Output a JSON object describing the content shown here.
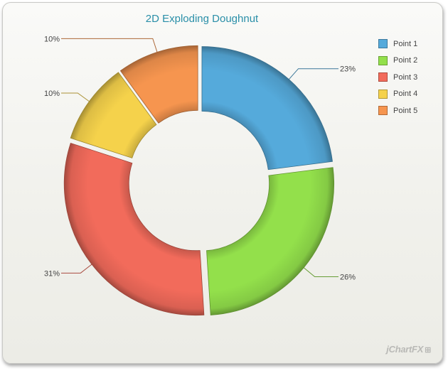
{
  "chart_data": {
    "type": "pie",
    "subtype": "exploding-doughnut",
    "title": "2D Exploding Doughnut",
    "categories": [
      "Point 1",
      "Point 2",
      "Point 3",
      "Point 4",
      "Point 5"
    ],
    "values": [
      23,
      26,
      31,
      10,
      10
    ],
    "data_labels": [
      "23%",
      "26%",
      "31%",
      "10%",
      "10%"
    ],
    "colors": [
      "#55aadb",
      "#93e04b",
      "#f26b5b",
      "#f5d24b",
      "#f6954f"
    ],
    "legend": "top-right"
  },
  "brand": {
    "text": "jChartFX",
    "mark": "⊞"
  }
}
